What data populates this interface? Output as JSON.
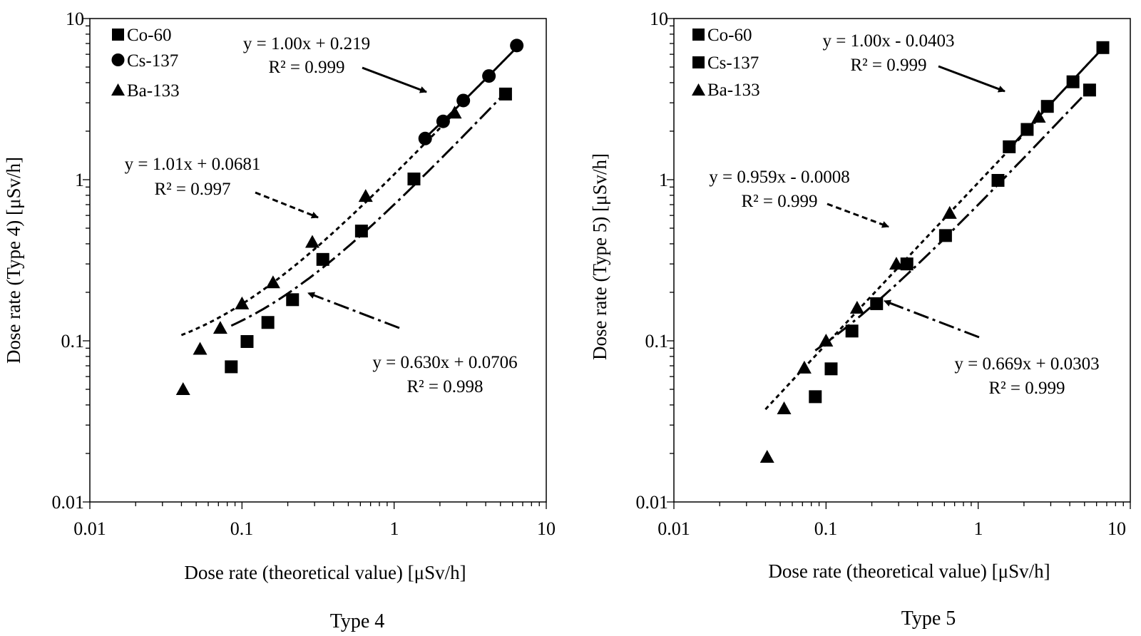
{
  "chart_data": [
    {
      "type": "scatter",
      "panel": "Type 4",
      "caption": "Type 4",
      "xscale": "log",
      "yscale": "log",
      "xlim": [
        0.01,
        10
      ],
      "ylim": [
        0.01,
        10
      ],
      "xticks": [
        "0.01",
        "0.1",
        "1",
        "10"
      ],
      "yticks": [
        "0.01",
        "0.1",
        "1",
        "10"
      ],
      "xlabel": "Dose rate (theoretical value) [μSv/h]",
      "ylabel": "Dose rate (Type 4) [μSv/h]",
      "legend": [
        {
          "label": "Co-60",
          "marker": "square"
        },
        {
          "label": "Cs-137",
          "marker": "circle"
        },
        {
          "label": "Ba-133",
          "marker": "triangle"
        }
      ],
      "series": [
        {
          "name": "Co-60",
          "marker": "square",
          "x": [
            0.085,
            0.108,
            0.148,
            0.215,
            0.34,
            0.61,
            1.35,
            5.4
          ],
          "y": [
            0.069,
            0.099,
            0.13,
            0.18,
            0.32,
            0.48,
            1.01,
            3.4
          ]
        },
        {
          "name": "Cs-137",
          "marker": "circle",
          "x": [
            1.6,
            2.1,
            2.85,
            4.2,
            6.4
          ],
          "y": [
            1.8,
            2.3,
            3.1,
            4.4,
            6.8
          ]
        },
        {
          "name": "Ba-133",
          "marker": "triangle",
          "x": [
            0.041,
            0.053,
            0.072,
            0.1,
            0.16,
            0.29,
            0.65,
            2.5
          ],
          "y": [
            0.05,
            0.089,
            0.12,
            0.17,
            0.23,
            0.41,
            0.79,
            2.6
          ]
        }
      ],
      "fits": [
        {
          "for": "Cs-137",
          "equation": "y = 1.00x + 0.219",
          "r2": "R² = 0.999",
          "slope": 1.0,
          "intercept": 0.219,
          "range": [
            1.6,
            6.5
          ],
          "style": "solid"
        },
        {
          "for": "Ba-133",
          "equation": "y = 1.01x + 0.0681",
          "r2": "R² = 0.997",
          "slope": 1.01,
          "intercept": 0.0681,
          "range": [
            0.04,
            2.6
          ],
          "style": "dotted"
        },
        {
          "for": "Co-60",
          "equation": "y = 0.630x + 0.0706",
          "r2": "R² = 0.998",
          "slope": 0.63,
          "intercept": 0.0706,
          "range": [
            0.085,
            5.4
          ],
          "style": "dashdot"
        }
      ]
    },
    {
      "type": "scatter",
      "panel": "Type 5",
      "caption": "Type 5",
      "xscale": "log",
      "yscale": "log",
      "xlim": [
        0.01,
        10
      ],
      "ylim": [
        0.01,
        10
      ],
      "xticks": [
        "0.01",
        "0.1",
        "1",
        "10"
      ],
      "yticks": [
        "0.01",
        "0.1",
        "1",
        "10"
      ],
      "xlabel": "Dose rate (theoretical value) [μSv/h]",
      "ylabel": "Dose rate (Type 5) [μSv/h]",
      "legend": [
        {
          "label": "Co-60",
          "marker": "square"
        },
        {
          "label": "Cs-137",
          "marker": "square"
        },
        {
          "label": "Ba-133",
          "marker": "triangle"
        }
      ],
      "series": [
        {
          "name": "Co-60",
          "marker": "square",
          "x": [
            0.085,
            0.108,
            0.148,
            0.215,
            0.34,
            0.61,
            1.35,
            5.4
          ],
          "y": [
            0.045,
            0.067,
            0.115,
            0.17,
            0.3,
            0.45,
            0.99,
            3.6
          ]
        },
        {
          "name": "Cs-137",
          "marker": "square",
          "x": [
            1.6,
            2.1,
            2.85,
            4.2,
            6.6
          ],
          "y": [
            1.6,
            2.05,
            2.85,
            4.05,
            6.6
          ]
        },
        {
          "name": "Ba-133",
          "marker": "triangle",
          "x": [
            0.041,
            0.053,
            0.072,
            0.1,
            0.16,
            0.29,
            0.65,
            2.5
          ],
          "y": [
            0.019,
            0.038,
            0.068,
            0.1,
            0.16,
            0.3,
            0.62,
            2.45
          ]
        }
      ],
      "fits": [
        {
          "for": "Cs-137",
          "equation": "y = 1.00x - 0.0403",
          "r2": "R² = 0.999",
          "slope": 1.0,
          "intercept": -0.0403,
          "range": [
            1.6,
            6.6
          ],
          "style": "solid"
        },
        {
          "for": "Ba-133",
          "equation": "y = 0.959x - 0.0008",
          "r2": "R² = 0.999",
          "slope": 0.959,
          "intercept": -0.0008,
          "range": [
            0.04,
            2.5
          ],
          "style": "dotted"
        },
        {
          "for": "Co-60",
          "equation": "y = 0.669x + 0.0303",
          "r2": "R² = 0.999",
          "slope": 0.669,
          "intercept": 0.0303,
          "range": [
            0.085,
            5.4
          ],
          "style": "dashdot"
        }
      ]
    }
  ]
}
